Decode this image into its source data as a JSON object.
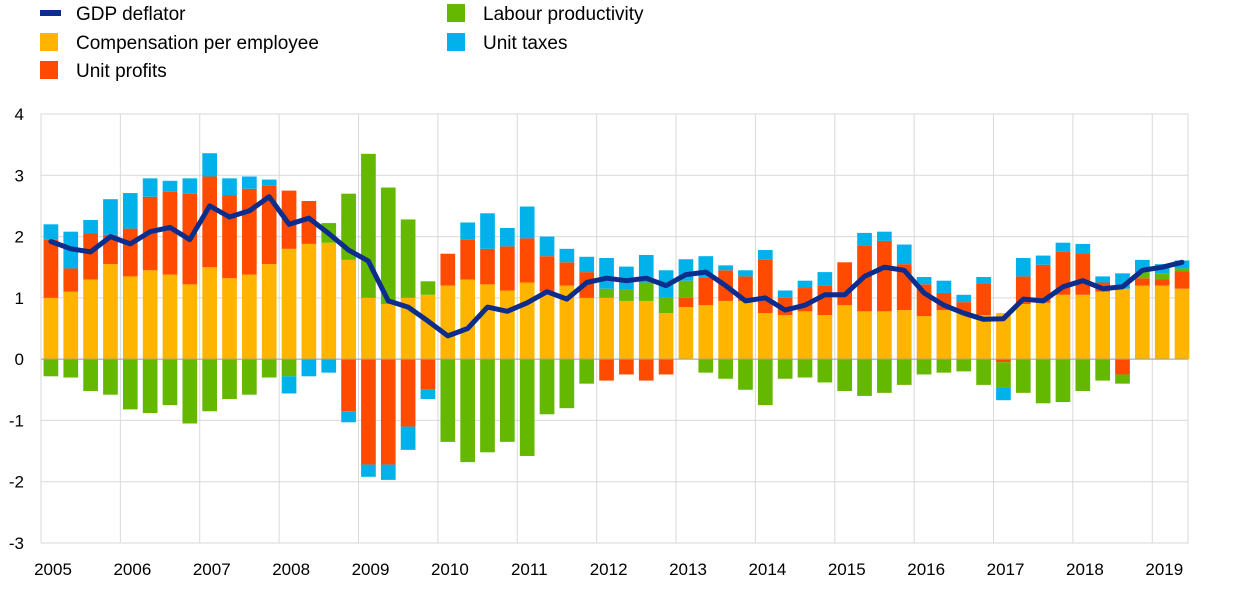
{
  "chart_data": {
    "type": "bar",
    "stacked": true,
    "grid": true,
    "legend_position": "top-left",
    "ylim": [
      -3,
      4
    ],
    "yticks": [
      "4",
      "3",
      "2",
      "1",
      "0",
      "-1",
      "-2",
      "-3"
    ],
    "ytick_values": [
      4,
      3,
      2,
      1,
      0,
      -1,
      -2,
      -3
    ],
    "xrange": [
      2005.0,
      2019.45
    ],
    "xticks": [
      "2005",
      "2006",
      "2007",
      "2008",
      "2009",
      "2010",
      "2011",
      "2012",
      "2013",
      "2014",
      "2015",
      "2016",
      "2017",
      "2018",
      "2019"
    ],
    "xtick_values": [
      2005,
      2006,
      2007,
      2008,
      2009,
      2010,
      2011,
      2012,
      2013,
      2014,
      2015,
      2016,
      2017,
      2018,
      2019
    ],
    "x": [
      "2005 Q1",
      "2005 Q2",
      "2005 Q3",
      "2005 Q4",
      "2006 Q1",
      "2006 Q2",
      "2006 Q3",
      "2006 Q4",
      "2007 Q1",
      "2007 Q2",
      "2007 Q3",
      "2007 Q4",
      "2008 Q1",
      "2008 Q2",
      "2008 Q3",
      "2008 Q4",
      "2009 Q1",
      "2009 Q2",
      "2009 Q3",
      "2009 Q4",
      "2010 Q1",
      "2010 Q2",
      "2010 Q3",
      "2010 Q4",
      "2011 Q1",
      "2011 Q2",
      "2011 Q3",
      "2011 Q4",
      "2012 Q1",
      "2012 Q2",
      "2012 Q3",
      "2012 Q4",
      "2013 Q1",
      "2013 Q2",
      "2013 Q3",
      "2013 Q4",
      "2014 Q1",
      "2014 Q2",
      "2014 Q3",
      "2014 Q4",
      "2015 Q1",
      "2015 Q2",
      "2015 Q3",
      "2015 Q4",
      "2016 Q1",
      "2016 Q2",
      "2016 Q3",
      "2016 Q4",
      "2017 Q1",
      "2017 Q2",
      "2017 Q3",
      "2017 Q4",
      "2018 Q1",
      "2018 Q2",
      "2018 Q3",
      "2018 Q4",
      "2019 Q1",
      "2019 Q2"
    ],
    "legend": [
      {
        "name": "GDP deflator",
        "marker": "line",
        "color": "#0d2d8c"
      },
      {
        "name": "Compensation per employee",
        "marker": "box",
        "color": "#ffb400"
      },
      {
        "name": "Unit profits",
        "marker": "box",
        "color": "#ff4b00"
      },
      {
        "name": "Labour productivity",
        "marker": "box",
        "color": "#65b800"
      },
      {
        "name": "Unit taxes",
        "marker": "box",
        "color": "#00b1ea"
      }
    ],
    "bar_series": [
      {
        "name": "Compensation per employee",
        "color": "#ffb400",
        "values": [
          1.0,
          1.1,
          1.3,
          1.55,
          1.35,
          1.45,
          1.38,
          1.22,
          1.5,
          1.32,
          1.38,
          1.55,
          1.8,
          1.88,
          1.9,
          1.62,
          1.0,
          0.9,
          1.0,
          1.05,
          1.2,
          1.3,
          1.22,
          1.12,
          1.25,
          1.1,
          1.2,
          1.0,
          1.0,
          0.95,
          0.95,
          0.75,
          0.85,
          0.88,
          0.95,
          0.95,
          0.75,
          0.72,
          0.78,
          0.72,
          0.88,
          0.78,
          0.78,
          0.8,
          0.7,
          0.8,
          0.75,
          0.72,
          0.75,
          0.9,
          0.92,
          1.05,
          1.05,
          1.1,
          1.15,
          1.2,
          1.2,
          1.15
        ]
      },
      {
        "name": "Unit profits",
        "color": "#ff4b00",
        "values": [
          0.95,
          0.38,
          0.75,
          0.48,
          0.78,
          1.2,
          1.35,
          1.48,
          1.48,
          1.35,
          1.4,
          1.28,
          0.95,
          0.7,
          0.0,
          -0.85,
          -1.72,
          -1.72,
          -1.1,
          -0.5,
          0.52,
          0.65,
          0.58,
          0.72,
          0.72,
          0.58,
          0.38,
          0.42,
          -0.35,
          -0.25,
          -0.35,
          -0.25,
          0.15,
          0.45,
          0.5,
          0.4,
          0.88,
          0.28,
          0.38,
          0.48,
          0.7,
          1.08,
          1.15,
          0.75,
          0.52,
          0.28,
          0.18,
          0.52,
          -0.05,
          0.45,
          0.62,
          0.7,
          0.68,
          0.15,
          -0.25,
          0.12,
          0.1,
          0.28
        ]
      },
      {
        "name": "Labour productivity",
        "color": "#65b800",
        "values": [
          -0.28,
          -0.3,
          -0.52,
          -0.58,
          -0.82,
          -0.88,
          -0.75,
          -1.05,
          -0.85,
          -0.65,
          -0.58,
          -0.3,
          -0.28,
          0.0,
          0.32,
          1.08,
          2.35,
          1.9,
          1.28,
          0.22,
          -1.35,
          -1.68,
          -1.52,
          -1.35,
          -1.58,
          -0.9,
          -0.8,
          -0.4,
          0.15,
          0.18,
          0.3,
          0.25,
          0.28,
          -0.22,
          -0.32,
          -0.5,
          -0.75,
          -0.32,
          -0.3,
          -0.38,
          -0.52,
          -0.6,
          -0.55,
          -0.42,
          -0.25,
          -0.22,
          -0.2,
          -0.42,
          -0.42,
          -0.55,
          -0.72,
          -0.7,
          -0.52,
          -0.35,
          -0.15,
          0.1,
          0.1,
          0.05
        ]
      },
      {
        "name": "Unit taxes",
        "color": "#00b1ea",
        "values": [
          0.25,
          0.6,
          0.22,
          0.58,
          0.58,
          0.3,
          0.18,
          0.25,
          0.38,
          0.28,
          0.2,
          0.1,
          -0.28,
          -0.28,
          -0.22,
          -0.18,
          -0.2,
          -0.25,
          -0.38,
          -0.15,
          0.0,
          0.28,
          0.58,
          0.3,
          0.52,
          0.32,
          0.22,
          0.25,
          0.5,
          0.38,
          0.45,
          0.45,
          0.35,
          0.35,
          0.08,
          0.1,
          0.15,
          0.12,
          0.12,
          0.22,
          0.0,
          0.2,
          0.15,
          0.32,
          0.12,
          0.2,
          0.12,
          0.1,
          -0.2,
          0.3,
          0.15,
          0.15,
          0.15,
          0.1,
          0.25,
          0.2,
          0.15,
          0.13
        ]
      }
    ],
    "line_series": {
      "name": "GDP deflator",
      "color": "#0d2d8c",
      "values": [
        1.92,
        1.8,
        1.75,
        2.0,
        1.88,
        2.08,
        2.15,
        1.95,
        2.5,
        2.32,
        2.42,
        2.65,
        2.2,
        2.3,
        2.05,
        1.78,
        1.6,
        0.95,
        0.85,
        0.62,
        0.38,
        0.5,
        0.85,
        0.78,
        0.92,
        1.1,
        0.98,
        1.25,
        1.32,
        1.28,
        1.32,
        1.2,
        1.38,
        1.42,
        1.2,
        0.95,
        1.0,
        0.8,
        0.88,
        1.05,
        1.05,
        1.35,
        1.5,
        1.45,
        1.08,
        0.88,
        0.75,
        0.65,
        0.66,
        0.98,
        0.95,
        1.18,
        1.28,
        1.15,
        1.18,
        1.45,
        1.5,
        1.58
      ]
    }
  }
}
